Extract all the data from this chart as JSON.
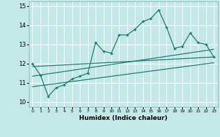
{
  "title": "",
  "xlabel": "Humidex (Indice chaleur)",
  "bg_color": "#c2e8e8",
  "grid_color": "#ffffff",
  "line_color": "#1a7a6e",
  "xlim": [
    -0.5,
    23.5
  ],
  "ylim": [
    9.75,
    15.25
  ],
  "yticks": [
    10,
    11,
    12,
    13,
    14,
    15
  ],
  "xticks": [
    0,
    1,
    2,
    3,
    4,
    5,
    6,
    7,
    8,
    9,
    10,
    11,
    12,
    13,
    14,
    15,
    16,
    17,
    18,
    19,
    20,
    21,
    22,
    23
  ],
  "series1_x": [
    0,
    1,
    2,
    3,
    4,
    5,
    6,
    7,
    8,
    9,
    10,
    11,
    12,
    13,
    14,
    15,
    16,
    17,
    18,
    19,
    20,
    21,
    22,
    23
  ],
  "series1_y": [
    12.0,
    11.4,
    10.3,
    10.75,
    10.9,
    11.2,
    11.35,
    11.5,
    13.1,
    12.65,
    12.55,
    13.5,
    13.5,
    13.8,
    14.2,
    14.35,
    14.8,
    13.9,
    12.8,
    12.9,
    13.6,
    13.1,
    13.0,
    12.35
  ],
  "series2_x": [
    0,
    23
  ],
  "series2_y": [
    11.85,
    12.35
  ],
  "series3_x": [
    0,
    23
  ],
  "series3_y": [
    11.35,
    12.75
  ],
  "series4_x": [
    0,
    23
  ],
  "series4_y": [
    10.8,
    12.05
  ]
}
